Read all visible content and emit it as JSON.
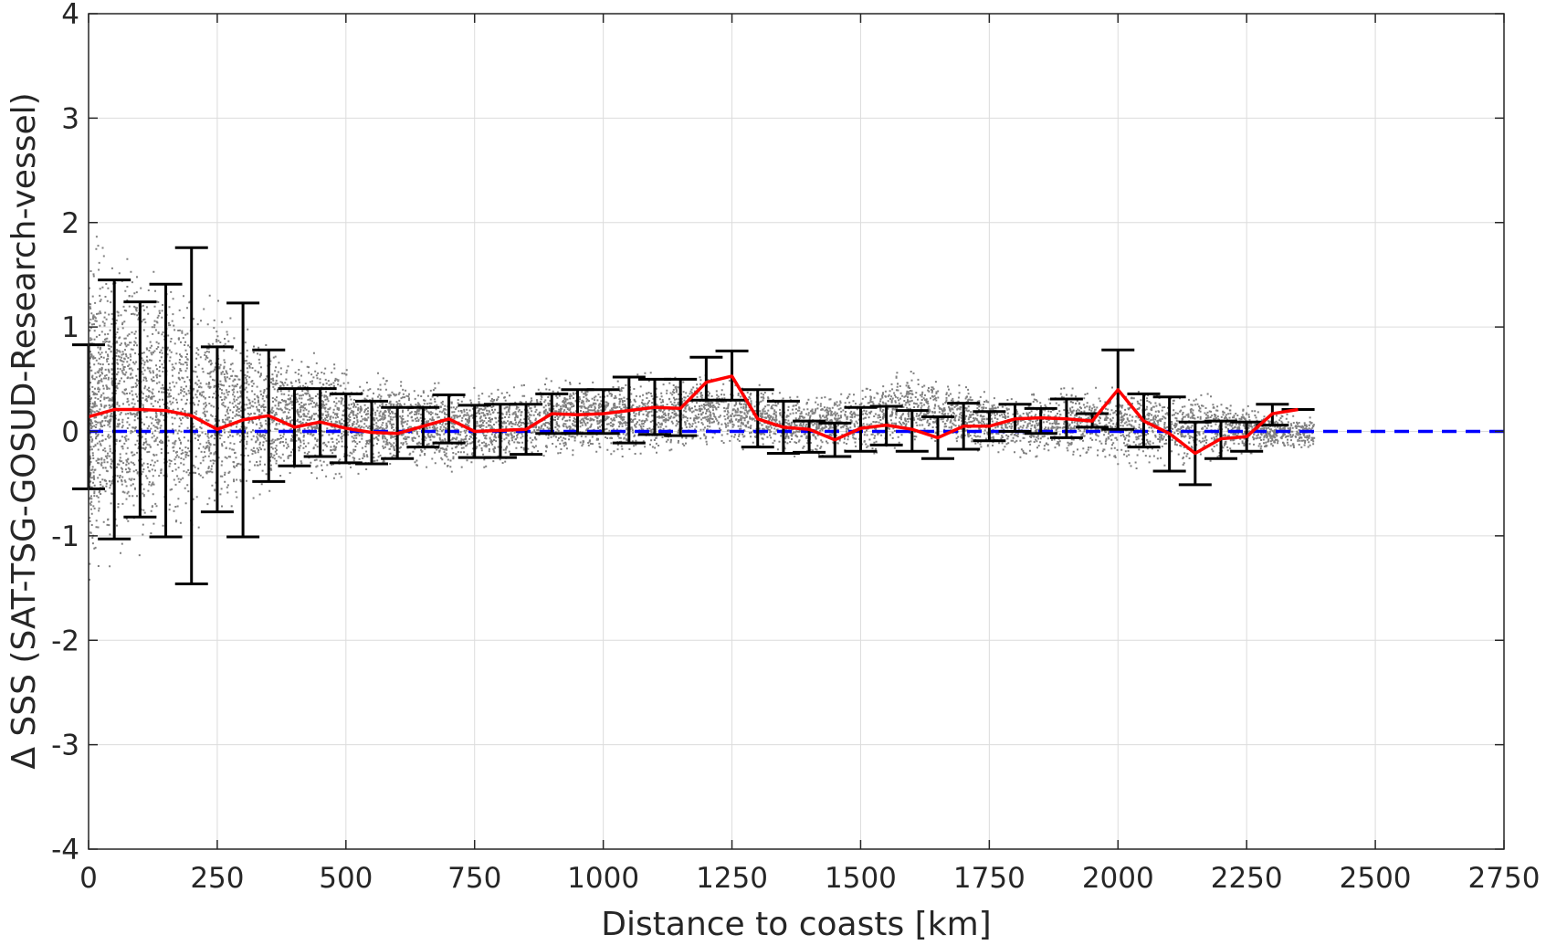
{
  "chart_data": {
    "type": "scatter",
    "title": "",
    "xlabel": "Distance to coasts [km]",
    "ylabel": "Δ SSS (SAT-TSG-GOSUD-Research-vessel)",
    "xlim": [
      0,
      2750
    ],
    "ylim": [
      -4,
      4
    ],
    "xticks": [
      0,
      250,
      500,
      750,
      1000,
      1250,
      1500,
      1750,
      2000,
      2250,
      2500,
      2750
    ],
    "yticks": [
      -4,
      -3,
      -2,
      -1,
      0,
      1,
      2,
      3,
      4
    ],
    "grid": true,
    "legend": "none",
    "colors": {
      "scatter": "#808080",
      "mean_line": "#ff0000",
      "error_bars": "#000000",
      "zero_line": "#0000ff",
      "grid": "#dcdcdc",
      "axes": "#262626"
    },
    "zero_reference": 0,
    "scatter_envelope": {
      "x": [
        0,
        100,
        200,
        300,
        400,
        500,
        600,
        700,
        800,
        900,
        1000,
        1100,
        1200,
        1300,
        1400,
        1500,
        1600,
        1700,
        1800,
        1900,
        2000,
        2100,
        2200,
        2300
      ],
      "upper": [
        2.0,
        2.0,
        1.6,
        1.2,
        0.9,
        0.7,
        0.6,
        0.5,
        0.5,
        0.6,
        0.6,
        0.6,
        0.6,
        0.5,
        0.4,
        0.5,
        0.7,
        0.5,
        0.4,
        0.5,
        0.5,
        0.5,
        0.4,
        0.2
      ],
      "lower": [
        -1.6,
        -1.4,
        -1.1,
        -0.8,
        -0.6,
        -0.5,
        -0.4,
        -0.4,
        -0.4,
        -0.3,
        -0.3,
        -0.3,
        -0.2,
        -0.2,
        -0.3,
        -0.3,
        -0.2,
        -0.2,
        -0.3,
        -0.3,
        -0.4,
        -0.4,
        -0.3,
        -0.2
      ]
    },
    "series": [
      {
        "x": [
          0,
          50,
          100,
          150,
          200,
          250,
          300,
          350,
          400,
          450,
          500,
          550,
          600,
          650,
          700,
          750,
          800,
          850,
          900,
          950,
          1000,
          1050,
          1100,
          1150,
          1200,
          1250,
          1300,
          1350,
          1400,
          1450,
          1500,
          1550,
          1600,
          1650,
          1700,
          1750,
          1800,
          1850,
          1900,
          1950,
          2000,
          2050,
          2100,
          2150,
          2200,
          2250,
          2300,
          2350
        ],
        "values": [
          0.14,
          0.21,
          0.21,
          0.2,
          0.15,
          0.02,
          0.11,
          0.15,
          0.04,
          0.09,
          0.03,
          -0.01,
          -0.02,
          0.05,
          0.12,
          0.0,
          0.01,
          0.02,
          0.17,
          0.16,
          0.17,
          0.2,
          0.23,
          0.22,
          0.47,
          0.53,
          0.12,
          0.04,
          0.02,
          -0.08,
          0.03,
          0.06,
          0.02,
          -0.06,
          0.05,
          0.05,
          0.12,
          0.13,
          0.12,
          0.1,
          0.4,
          0.1,
          -0.02,
          -0.21,
          -0.07,
          -0.05,
          0.17,
          0.21
        ],
        "err_low": [
          -0.55,
          -1.03,
          -0.82,
          -1.01,
          -1.46,
          -0.77,
          -1.01,
          -0.48,
          -0.33,
          -0.24,
          -0.3,
          -0.31,
          -0.26,
          -0.15,
          -0.11,
          -0.25,
          -0.25,
          -0.22,
          -0.02,
          -0.02,
          -0.02,
          -0.11,
          -0.03,
          -0.04,
          0.3,
          0.3,
          -0.15,
          -0.21,
          -0.2,
          -0.24,
          -0.19,
          -0.13,
          -0.19,
          -0.26,
          -0.17,
          -0.09,
          -0.0,
          -0.02,
          -0.06,
          0.04,
          0.02,
          -0.15,
          -0.38,
          -0.51,
          -0.26,
          -0.19,
          0.06,
          0.21
        ],
        "err_high": [
          0.83,
          1.45,
          1.24,
          1.41,
          1.76,
          0.81,
          1.23,
          0.78,
          0.41,
          0.41,
          0.36,
          0.29,
          0.23,
          0.23,
          0.35,
          0.25,
          0.26,
          0.26,
          0.36,
          0.4,
          0.4,
          0.52,
          0.5,
          0.5,
          0.71,
          0.77,
          0.4,
          0.29,
          0.1,
          0.08,
          0.23,
          0.24,
          0.2,
          0.14,
          0.27,
          0.19,
          0.26,
          0.22,
          0.31,
          0.17,
          0.78,
          0.36,
          0.33,
          0.09,
          0.1,
          0.09,
          0.26,
          0.21
        ]
      }
    ]
  }
}
